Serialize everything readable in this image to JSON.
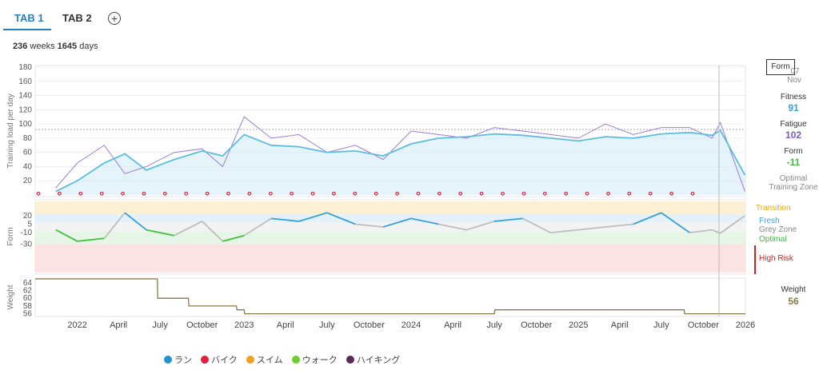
{
  "tabs": [
    {
      "label": "TAB 1",
      "active": true
    },
    {
      "label": "TAB 2",
      "active": false
    }
  ],
  "add_tab_icon": "plus-circle-icon",
  "period": {
    "weeks": "236",
    "weeks_unit": "weeks",
    "days": "1645",
    "days_unit": "days"
  },
  "colors": {
    "fitness": "#5bbde0",
    "fatigue": "#9b7fd4",
    "transition": "#e6a817",
    "fresh": "#3aa0d8",
    "grey_zone": "#bdbdbd",
    "optimal": "#3cc13c",
    "high_risk": "#d01f1f",
    "weight": "#8a7a48",
    "accent": "#2a7fc0"
  },
  "sidebar": {
    "tooltip_label": "Form",
    "date_day": "07",
    "date_month": "Nov",
    "fitness_label": "Fitness",
    "fitness_value": "91",
    "fatigue_label": "Fatigue",
    "fatigue_value": "102",
    "form_label": "Form",
    "form_value": "-11",
    "zone_label_1": "Optimal",
    "zone_label_2": "Training Zone",
    "weight_label": "Weight",
    "weight_value": "56"
  },
  "form_zones": {
    "transition": "Transition",
    "fresh": "Fresh",
    "grey_zone": "Grey Zone",
    "optimal": "Optimal",
    "high_risk": "High Risk"
  },
  "legend": [
    {
      "label": "ラン",
      "color": "#1e96d6"
    },
    {
      "label": "バイク",
      "color": "#e0203c"
    },
    {
      "label": "スイム",
      "color": "#f0a020"
    },
    {
      "label": "ウォーク",
      "color": "#6ad02a"
    },
    {
      "label": "ハイキング",
      "color": "#5a2a5a"
    }
  ],
  "chart_data": [
    {
      "type": "line",
      "title": "",
      "ylabel": "Training load per day",
      "ylim": [
        0,
        180
      ],
      "yticks": [
        20,
        40,
        60,
        80,
        100,
        120,
        140,
        160,
        180
      ],
      "xlim": [
        "2021-10-01",
        "2026-01-01"
      ],
      "x": [
        "2021-11-15",
        "2022-01-01",
        "2022-03-01",
        "2022-04-15",
        "2022-06-01",
        "2022-08-01",
        "2022-10-01",
        "2022-11-15",
        "2023-01-01",
        "2023-03-01",
        "2023-05-01",
        "2023-07-01",
        "2023-09-01",
        "2023-11-01",
        "2024-01-01",
        "2024-03-01",
        "2024-05-01",
        "2024-07-01",
        "2024-09-01",
        "2024-11-01",
        "2025-01-01",
        "2025-03-01",
        "2025-05-01",
        "2025-07-01",
        "2025-09-01",
        "2025-10-20",
        "2025-11-07",
        "2025-12-31"
      ],
      "series": [
        {
          "name": "Fitness",
          "values": [
            5,
            20,
            45,
            58,
            35,
            50,
            62,
            55,
            85,
            70,
            68,
            60,
            62,
            55,
            72,
            80,
            82,
            86,
            84,
            80,
            76,
            82,
            80,
            86,
            88,
            84,
            91,
            28
          ]
        },
        {
          "name": "Fatigue",
          "values": [
            10,
            45,
            70,
            30,
            40,
            60,
            65,
            40,
            110,
            80,
            85,
            60,
            70,
            50,
            90,
            85,
            80,
            95,
            90,
            85,
            80,
            100,
            85,
            95,
            95,
            80,
            102,
            5
          ]
        }
      ],
      "event_markers": {
        "y": 2,
        "count": 32
      }
    },
    {
      "type": "line",
      "ylabel": "Form",
      "yticks": [
        20,
        5,
        -10,
        -30
      ],
      "ylim": [
        -80,
        45
      ],
      "x": [
        "2021-11-15",
        "2022-01-01",
        "2022-03-01",
        "2022-04-15",
        "2022-06-01",
        "2022-08-01",
        "2022-10-01",
        "2022-11-15",
        "2023-01-01",
        "2023-03-01",
        "2023-05-01",
        "2023-07-01",
        "2023-09-01",
        "2023-11-01",
        "2024-01-01",
        "2024-03-01",
        "2024-05-01",
        "2024-07-01",
        "2024-09-01",
        "2024-11-01",
        "2025-01-01",
        "2025-03-01",
        "2025-05-01",
        "2025-07-01",
        "2025-09-01",
        "2025-10-20",
        "2025-11-07",
        "2025-12-31"
      ],
      "series": [
        {
          "name": "Form",
          "values": [
            -5,
            -25,
            -20,
            25,
            -5,
            -15,
            10,
            -25,
            -15,
            15,
            10,
            25,
            5,
            0,
            15,
            5,
            -5,
            10,
            15,
            -10,
            -5,
            0,
            5,
            25,
            -10,
            -5,
            -11,
            20
          ]
        }
      ],
      "zones": [
        "Transition",
        "Fresh",
        "Grey Zone",
        "Optimal",
        "High Risk"
      ]
    },
    {
      "type": "line",
      "ylabel": "Weight",
      "yticks": [
        56,
        58,
        60,
        62,
        64
      ],
      "ylim": [
        55.5,
        65
      ],
      "x": [
        "2021-10-01",
        "2022-06-25",
        "2022-06-26",
        "2022-09-01",
        "2022-09-02",
        "2022-12-15",
        "2022-12-16",
        "2023-01-01",
        "2023-01-02",
        "2024-07-01",
        "2024-07-02",
        "2025-08-20",
        "2025-08-21",
        "2026-01-01"
      ],
      "series": [
        {
          "name": "Weight",
          "values": [
            65,
            65,
            60,
            60,
            58,
            58,
            57,
            57,
            56,
            56,
            57,
            57,
            56,
            56
          ]
        }
      ]
    }
  ],
  "x_ticks": [
    "2022",
    "April",
    "July",
    "October",
    "2023",
    "April",
    "July",
    "October",
    "2024",
    "April",
    "July",
    "October",
    "2025",
    "April",
    "July",
    "October",
    "2026"
  ]
}
